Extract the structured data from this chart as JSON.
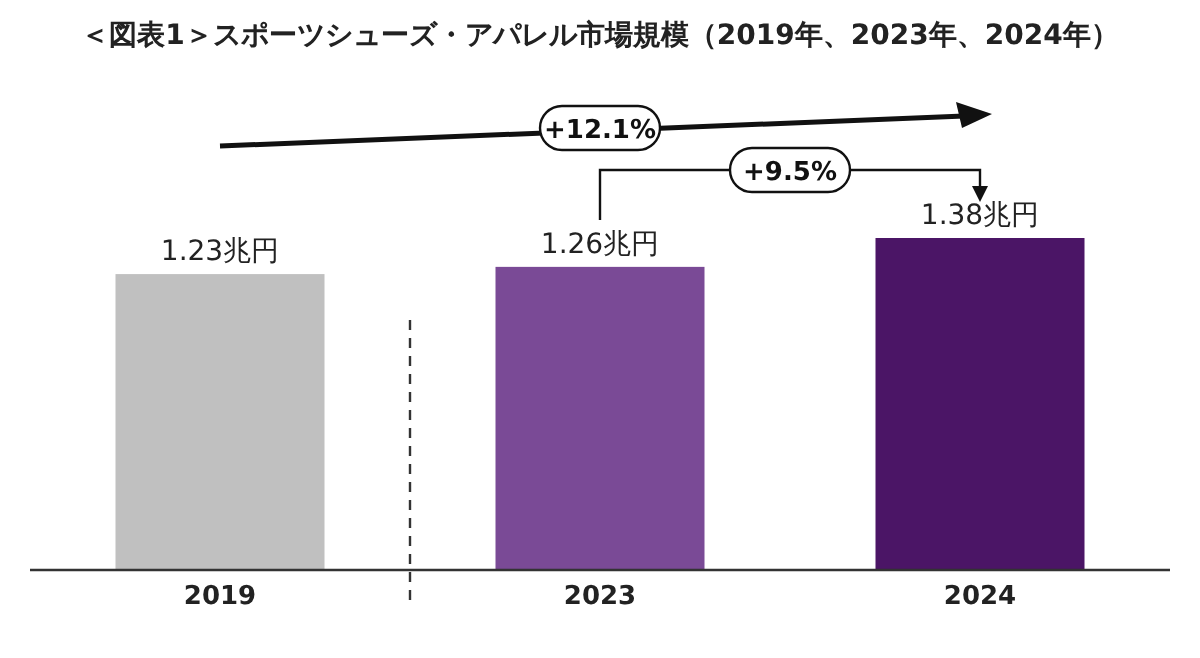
{
  "chart_data": {
    "type": "bar",
    "title": "＜図表1＞スポーツシューズ・アパレル市場規模（2019年、2023年、2024年）",
    "categories": [
      "2019",
      "2023",
      "2024"
    ],
    "values": [
      1.23,
      1.26,
      1.38
    ],
    "colors": [
      "#c0c0c0",
      "#7a4a96",
      "#4b1566"
    ],
    "value_labels": [
      "1.23兆円",
      "1.26兆円",
      "1.38兆円"
    ],
    "annotations": [
      "+12.1%",
      "+9.5%"
    ]
  }
}
